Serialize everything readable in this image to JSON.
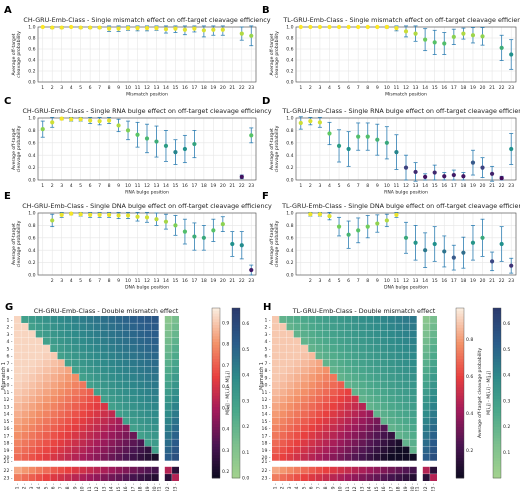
{
  "figure": {
    "panels": [
      {
        "letter": "A",
        "title": "CH-GRU-Emb-Class - Single mismatch effect on off-target cleavage efficiency",
        "xlabel": "Mismatch position",
        "ylabel": [
          "Average off-target",
          "cleavage probability"
        ]
      },
      {
        "letter": "B",
        "title": "TL-GRU-Emb-Class - Single mismatch effect on off-target cleavage efficiency",
        "xlabel": "Mismatch position",
        "ylabel": [
          "Average off-target",
          "cleavage probability"
        ]
      },
      {
        "letter": "C",
        "title": "CH-GRU-Emb-Class - Single RNA bulge effect on off-target cleavage efficiency",
        "xlabel": "RNA bulge position",
        "ylabel": [
          "Average off-target",
          "cleavage probability"
        ]
      },
      {
        "letter": "D",
        "title": "TL-GRU-Emb-Class - Single RNA bulge effect on off-target cleavage efficiency",
        "xlabel": "RNA bulge position",
        "ylabel": [
          "Average off-target",
          "cleavage probability"
        ]
      },
      {
        "letter": "E",
        "title": "CH-GRU-Emb-Class - Single DNA bulge effect on off-target cleavage efficiency",
        "xlabel": "DNA bulge position",
        "ylabel": [
          "Average off-target",
          "cleavage probability"
        ]
      },
      {
        "letter": "F",
        "title": "TL-GRU-Emb-Class - Single DNA bulge effect on off-target cleavage efficiency",
        "xlabel": "DNA bulge position",
        "ylabel": [
          "Average off-target",
          "cleavage probability"
        ]
      },
      {
        "letter": "G",
        "title": "CH-GRU-Emb-Class - Double mismatch effect",
        "xlabel": "Mismatch 2",
        "ylabel": "Mismatch 1",
        "cbar1_label": "Average off-target cleavage probability",
        "cbar2_label": "M[i,j] - M[i,i] - M[j,j]"
      },
      {
        "letter": "H",
        "title": "TL-GRU-Emb-Class - Double mismatch effect",
        "xlabel": "Mismatch 2",
        "ylabel": "Mismatch 1",
        "cbar1_label": "Average off-target cleavage probability",
        "cbar2_label": "M[i,j] - M[i,i] - M[j,j]"
      }
    ],
    "colors": {
      "scatter_low": "#2b0f4c",
      "scatter_high": "#f6e93a",
      "errorbar": "#2f7fb3",
      "grid": "#e6e6e6"
    }
  },
  "chart_data": [
    {
      "type": "scatter",
      "panel": "A",
      "ylim": [
        0,
        1.0
      ],
      "yticks": [
        0.0,
        0.2,
        0.4,
        0.6,
        0.8,
        1.0
      ],
      "x": [
        1,
        2,
        3,
        4,
        5,
        6,
        7,
        8,
        9,
        10,
        11,
        12,
        13,
        14,
        15,
        16,
        17,
        18,
        19,
        20,
        21,
        22,
        23
      ],
      "y": [
        1.0,
        0.99,
        0.99,
        1.0,
        0.99,
        0.99,
        0.99,
        0.97,
        0.97,
        0.98,
        0.98,
        0.98,
        0.98,
        0.96,
        0.97,
        0.95,
        0.97,
        0.94,
        0.95,
        0.95,
        null,
        0.88,
        0.84
      ],
      "err": [
        0.01,
        0.02,
        0.02,
        0.01,
        0.02,
        0.02,
        0.02,
        0.05,
        0.05,
        0.04,
        0.05,
        0.05,
        0.04,
        0.07,
        0.07,
        0.09,
        0.06,
        0.12,
        0.1,
        0.1,
        null,
        0.12,
        0.18
      ]
    },
    {
      "type": "scatter",
      "panel": "B",
      "ylim": [
        0,
        1.0
      ],
      "yticks": [
        0.0,
        0.2,
        0.4,
        0.6,
        0.8,
        1.0
      ],
      "x": [
        1,
        2,
        3,
        4,
        5,
        6,
        7,
        8,
        9,
        10,
        11,
        12,
        13,
        14,
        15,
        16,
        17,
        18,
        19,
        20,
        21,
        22,
        23
      ],
      "y": [
        1.0,
        1.0,
        1.0,
        1.0,
        1.0,
        1.0,
        1.0,
        1.0,
        1.0,
        1.0,
        0.98,
        0.92,
        0.88,
        0.77,
        0.72,
        0.7,
        0.82,
        0.88,
        0.85,
        0.83,
        null,
        0.62,
        0.5
      ],
      "err": [
        0.0,
        0.01,
        0.01,
        0.0,
        0.01,
        0.01,
        0.01,
        0.01,
        0.01,
        0.02,
        0.05,
        0.1,
        0.14,
        0.2,
        0.22,
        0.2,
        0.14,
        0.1,
        0.14,
        0.16,
        null,
        0.23,
        0.27
      ]
    },
    {
      "type": "scatter",
      "panel": "C",
      "ylim": [
        0,
        1.0
      ],
      "yticks": [
        0.0,
        0.2,
        0.4,
        0.6,
        0.8,
        1.0
      ],
      "x": [
        1,
        2,
        3,
        4,
        5,
        6,
        7,
        8,
        9,
        10,
        11,
        12,
        13,
        14,
        15,
        16,
        17,
        18,
        19,
        20,
        21,
        22,
        23
      ],
      "y": [
        0.82,
        0.93,
        0.99,
        0.98,
        0.98,
        0.96,
        0.95,
        0.96,
        0.88,
        0.8,
        0.73,
        0.67,
        0.62,
        0.55,
        0.45,
        0.5,
        0.58,
        null,
        null,
        null,
        null,
        0.05,
        0.72
      ],
      "err": [
        0.13,
        0.08,
        0.02,
        0.03,
        0.03,
        0.05,
        0.06,
        0.05,
        0.1,
        0.15,
        0.2,
        0.23,
        0.25,
        0.25,
        0.2,
        0.22,
        0.22,
        null,
        null,
        null,
        null,
        0.03,
        0.12
      ]
    },
    {
      "type": "scatter",
      "panel": "D",
      "ylim": [
        0,
        1.0
      ],
      "yticks": [
        0.0,
        0.2,
        0.4,
        0.6,
        0.8,
        1.0
      ],
      "x": [
        1,
        2,
        3,
        4,
        5,
        6,
        7,
        8,
        9,
        10,
        11,
        12,
        13,
        14,
        15,
        16,
        17,
        18,
        19,
        20,
        21,
        22,
        23
      ],
      "y": [
        0.92,
        0.95,
        0.93,
        0.75,
        0.55,
        0.5,
        0.7,
        0.7,
        0.65,
        0.6,
        0.45,
        0.2,
        0.13,
        0.05,
        0.12,
        0.06,
        0.08,
        0.06,
        0.28,
        0.2,
        0.1,
        0.03,
        0.5
      ],
      "err": [
        0.1,
        0.06,
        0.08,
        0.18,
        0.26,
        0.28,
        0.22,
        0.22,
        0.25,
        0.26,
        0.28,
        0.2,
        0.15,
        0.05,
        0.12,
        0.06,
        0.08,
        0.06,
        0.2,
        0.16,
        0.12,
        0.03,
        0.25
      ]
    },
    {
      "type": "scatter",
      "panel": "E",
      "ylim": [
        0,
        1.0
      ],
      "yticks": [
        0.0,
        0.2,
        0.4,
        0.6,
        0.8,
        1.0
      ],
      "x": [
        2,
        3,
        4,
        5,
        6,
        7,
        8,
        9,
        10,
        11,
        12,
        13,
        14,
        15,
        16,
        17,
        18,
        19,
        20,
        21,
        22,
        23
      ],
      "y": [
        0.88,
        0.97,
        0.99,
        0.98,
        0.97,
        0.97,
        0.97,
        0.96,
        0.96,
        0.94,
        0.93,
        0.9,
        0.86,
        0.8,
        0.7,
        0.62,
        0.6,
        0.72,
        0.82,
        0.5,
        0.48,
        0.08
      ],
      "err": [
        0.1,
        0.04,
        0.02,
        0.03,
        0.04,
        0.04,
        0.04,
        0.05,
        0.05,
        0.07,
        0.08,
        0.1,
        0.12,
        0.16,
        0.2,
        0.22,
        0.2,
        0.18,
        0.12,
        0.2,
        0.22,
        0.08
      ]
    },
    {
      "type": "scatter",
      "panel": "F",
      "ylim": [
        0,
        1.0
      ],
      "yticks": [
        0.0,
        0.2,
        0.4,
        0.6,
        0.8,
        1.0
      ],
      "x": [
        2,
        3,
        4,
        5,
        6,
        7,
        8,
        9,
        10,
        11,
        12,
        13,
        14,
        15,
        16,
        17,
        18,
        19,
        20,
        21,
        22,
        23
      ],
      "y": [
        0.98,
        0.98,
        0.95,
        0.78,
        0.65,
        0.72,
        0.78,
        0.83,
        0.88,
        0.97,
        0.6,
        0.52,
        0.4,
        0.5,
        0.38,
        0.28,
        0.36,
        0.52,
        0.6,
        0.22,
        0.5,
        0.15
      ],
      "err": [
        0.03,
        0.03,
        0.06,
        0.15,
        0.22,
        0.2,
        0.18,
        0.14,
        0.1,
        0.04,
        0.25,
        0.28,
        0.28,
        0.28,
        0.25,
        0.2,
        0.25,
        0.28,
        0.3,
        0.15,
        0.28,
        0.12
      ]
    },
    {
      "type": "heatmap",
      "panel": "G",
      "labels": [
        "1",
        "2",
        "3",
        "4",
        "5",
        "6",
        "7",
        "8",
        "9",
        "10",
        "11",
        "12",
        "13",
        "14",
        "15",
        "16",
        "17",
        "18",
        "19",
        "20",
        "21",
        "22",
        "23"
      ],
      "cbar1_ticks": [
        0.2,
        0.3,
        0.4,
        0.5,
        0.6,
        0.7,
        0.8,
        0.9
      ],
      "cbar1_range": [
        0.17,
        0.97
      ],
      "cbar2_ticks": [
        0.0,
        0.1,
        0.2,
        0.3,
        0.4,
        0.5,
        0.6
      ],
      "cbar2_range": [
        0.0,
        0.66
      ]
    },
    {
      "type": "heatmap",
      "panel": "H",
      "labels": [
        "1",
        "2",
        "3",
        "4",
        "5",
        "6",
        "7",
        "8",
        "9",
        "10",
        "11",
        "12",
        "13",
        "14",
        "15",
        "16",
        "17",
        "18",
        "19",
        "20",
        "21",
        "22",
        "23"
      ],
      "cbar1_ticks": [
        0.2,
        0.4,
        0.6,
        0.8
      ],
      "cbar1_range": [
        0.05,
        0.97
      ],
      "cbar2_ticks": [
        0.1,
        0.2,
        0.3,
        0.4,
        0.5,
        0.6
      ],
      "cbar2_range": [
        0.0,
        0.66
      ]
    }
  ]
}
